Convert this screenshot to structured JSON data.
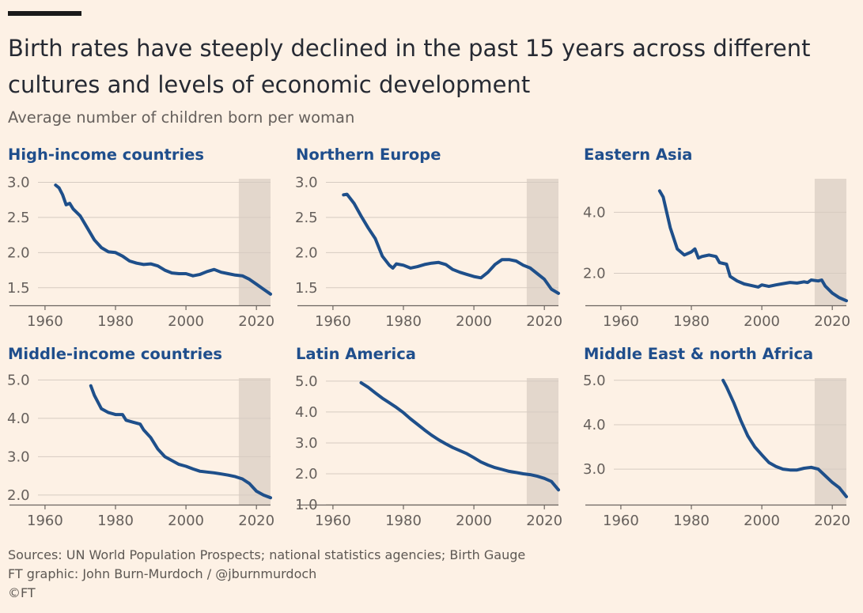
{
  "header": {
    "title": "Birth rates have steeply declined in the past 15 years across different cultures and levels of economic development",
    "subtitle": "Average number of children born per woman"
  },
  "footer": {
    "sources": "Sources: UN World Population Prospects; national statistics agencies; Birth Gauge",
    "credit": "FT graphic: John Burn-Murdoch / @jburnmurdoch",
    "copyright": "©FT"
  },
  "colors": {
    "background": "#fdf1e5",
    "line": "#1e4f8a",
    "shade": "#e3d7cc",
    "grid": "#d6cbc1",
    "panel_title": "#1f4e8c"
  },
  "chart_data": [
    {
      "type": "line",
      "title": "High-income countries",
      "xlim": [
        1958,
        2024
      ],
      "ylim": [
        1.25,
        3.05
      ],
      "yticks": [
        1.5,
        2.0,
        2.5,
        3.0
      ],
      "ytick_labels": [
        "1.5",
        "2.0",
        "2.5",
        "3.0"
      ],
      "xticks": [
        1960,
        1980,
        2000,
        2020
      ],
      "xtick_labels": [
        "1960",
        "1980",
        "2000",
        "2020"
      ],
      "shaded_range": [
        2015,
        2024
      ],
      "x": [
        1963,
        1964,
        1965,
        1966,
        1967,
        1968,
        1970,
        1972,
        1974,
        1976,
        1978,
        1980,
        1982,
        1984,
        1986,
        1988,
        1990,
        1992,
        1994,
        1996,
        1998,
        2000,
        2002,
        2004,
        2006,
        2008,
        2010,
        2012,
        2014,
        2016,
        2018,
        2020,
        2022,
        2024
      ],
      "y": [
        2.96,
        2.92,
        2.82,
        2.68,
        2.7,
        2.62,
        2.52,
        2.35,
        2.18,
        2.07,
        2.01,
        2.0,
        1.95,
        1.88,
        1.85,
        1.83,
        1.84,
        1.81,
        1.75,
        1.71,
        1.7,
        1.7,
        1.67,
        1.69,
        1.73,
        1.76,
        1.72,
        1.7,
        1.68,
        1.67,
        1.62,
        1.55,
        1.48,
        1.41
      ]
    },
    {
      "type": "line",
      "title": "Northern Europe",
      "xlim": [
        1958,
        2024
      ],
      "ylim": [
        1.25,
        3.05
      ],
      "yticks": [
        1.5,
        2.0,
        2.5,
        3.0
      ],
      "ytick_labels": [
        "1.5",
        "2.0",
        "2.5",
        "3.0"
      ],
      "xticks": [
        1960,
        1980,
        2000,
        2020
      ],
      "xtick_labels": [
        "1960",
        "1980",
        "2000",
        "2020"
      ],
      "shaded_range": [
        2015,
        2024
      ],
      "x": [
        1963,
        1964,
        1966,
        1968,
        1970,
        1972,
        1974,
        1976,
        1977,
        1978,
        1980,
        1982,
        1984,
        1986,
        1988,
        1990,
        1992,
        1994,
        1996,
        1998,
        2000,
        2002,
        2004,
        2006,
        2008,
        2010,
        2012,
        2014,
        2016,
        2018,
        2020,
        2022,
        2024
      ],
      "y": [
        2.82,
        2.83,
        2.7,
        2.52,
        2.35,
        2.2,
        1.95,
        1.82,
        1.78,
        1.84,
        1.82,
        1.78,
        1.8,
        1.83,
        1.85,
        1.86,
        1.83,
        1.76,
        1.72,
        1.69,
        1.66,
        1.64,
        1.72,
        1.83,
        1.9,
        1.9,
        1.88,
        1.82,
        1.78,
        1.7,
        1.62,
        1.48,
        1.42
      ]
    },
    {
      "type": "line",
      "title": "Eastern Asia",
      "xlim": [
        1958,
        2024
      ],
      "ylim": [
        0.95,
        5.1
      ],
      "yticks": [
        2.0,
        4.0
      ],
      "ytick_labels": [
        "2.0",
        "4.0"
      ],
      "xticks": [
        1960,
        1980,
        2000,
        2020
      ],
      "xtick_labels": [
        "1960",
        "1980",
        "2000",
        "2020"
      ],
      "shaded_range": [
        2015,
        2024
      ],
      "x": [
        1971,
        1972,
        1974,
        1976,
        1978,
        1980,
        1981,
        1982,
        1983,
        1985,
        1987,
        1988,
        1990,
        1991,
        1993,
        1995,
        1997,
        1999,
        2000,
        2002,
        2004,
        2006,
        2008,
        2010,
        2012,
        2013,
        2014,
        2016,
        2017,
        2018,
        2020,
        2022,
        2024
      ],
      "y": [
        4.7,
        4.5,
        3.5,
        2.8,
        2.6,
        2.7,
        2.8,
        2.5,
        2.55,
        2.6,
        2.55,
        2.35,
        2.3,
        1.9,
        1.75,
        1.65,
        1.6,
        1.55,
        1.62,
        1.57,
        1.62,
        1.66,
        1.7,
        1.68,
        1.72,
        1.7,
        1.78,
        1.75,
        1.78,
        1.58,
        1.35,
        1.2,
        1.1
      ]
    },
    {
      "type": "line",
      "title": "Middle-income countries",
      "xlim": [
        1958,
        2024
      ],
      "ylim": [
        1.75,
        5.05
      ],
      "yticks": [
        2.0,
        3.0,
        4.0,
        5.0
      ],
      "ytick_labels": [
        "2.0",
        "3.0",
        "4.0",
        "5.0"
      ],
      "xticks": [
        1960,
        1980,
        2000,
        2020
      ],
      "xtick_labels": [
        "1960",
        "1980",
        "2000",
        "2020"
      ],
      "shaded_range": [
        2015,
        2024
      ],
      "x": [
        1973,
        1974,
        1976,
        1978,
        1980,
        1982,
        1983,
        1985,
        1987,
        1988,
        1990,
        1992,
        1994,
        1996,
        1998,
        2000,
        2002,
        2004,
        2006,
        2008,
        2010,
        2012,
        2014,
        2016,
        2018,
        2020,
        2022,
        2024
      ],
      "y": [
        4.85,
        4.6,
        4.25,
        4.15,
        4.1,
        4.1,
        3.95,
        3.9,
        3.85,
        3.7,
        3.5,
        3.2,
        3.0,
        2.9,
        2.8,
        2.75,
        2.68,
        2.62,
        2.6,
        2.58,
        2.55,
        2.52,
        2.48,
        2.42,
        2.3,
        2.1,
        2.0,
        1.93
      ]
    },
    {
      "type": "line",
      "title": "Latin America",
      "xlim": [
        1958,
        2024
      ],
      "ylim": [
        1.0,
        5.1
      ],
      "yticks": [
        1.0,
        2.0,
        3.0,
        4.0,
        5.0
      ],
      "ytick_labels": [
        "1.0",
        "2.0",
        "3.0",
        "4.0",
        "5.0"
      ],
      "xticks": [
        1960,
        1980,
        2000,
        2020
      ],
      "xtick_labels": [
        "1960",
        "1980",
        "2000",
        "2020"
      ],
      "shaded_range": [
        2015,
        2024
      ],
      "x": [
        1968,
        1970,
        1972,
        1974,
        1976,
        1978,
        1980,
        1982,
        1984,
        1986,
        1988,
        1990,
        1992,
        1994,
        1996,
        1998,
        2000,
        2002,
        2004,
        2006,
        2008,
        2010,
        2012,
        2014,
        2016,
        2018,
        2020,
        2022,
        2024
      ],
      "y": [
        4.95,
        4.8,
        4.62,
        4.45,
        4.3,
        4.15,
        3.98,
        3.78,
        3.6,
        3.42,
        3.25,
        3.1,
        2.97,
        2.85,
        2.75,
        2.65,
        2.52,
        2.38,
        2.28,
        2.2,
        2.14,
        2.08,
        2.04,
        2.0,
        1.97,
        1.92,
        1.85,
        1.75,
        1.48
      ]
    },
    {
      "type": "line",
      "title": "Middle East & north Africa",
      "xlim": [
        1958,
        2024
      ],
      "ylim": [
        2.2,
        5.05
      ],
      "yticks": [
        3.0,
        4.0,
        5.0
      ],
      "ytick_labels": [
        "3.0",
        "4.0",
        "5.0"
      ],
      "xticks": [
        1960,
        1980,
        2000,
        2020
      ],
      "xtick_labels": [
        "1960",
        "1980",
        "2000",
        "2020"
      ],
      "shaded_range": [
        2015,
        2024
      ],
      "x": [
        1989,
        1990,
        1992,
        1994,
        1996,
        1998,
        2000,
        2002,
        2004,
        2006,
        2008,
        2010,
        2012,
        2014,
        2016,
        2018,
        2020,
        2022,
        2024
      ],
      "y": [
        5.0,
        4.85,
        4.5,
        4.1,
        3.75,
        3.5,
        3.32,
        3.15,
        3.06,
        3.0,
        2.98,
        2.98,
        3.02,
        3.04,
        3.0,
        2.85,
        2.7,
        2.58,
        2.38
      ]
    }
  ]
}
